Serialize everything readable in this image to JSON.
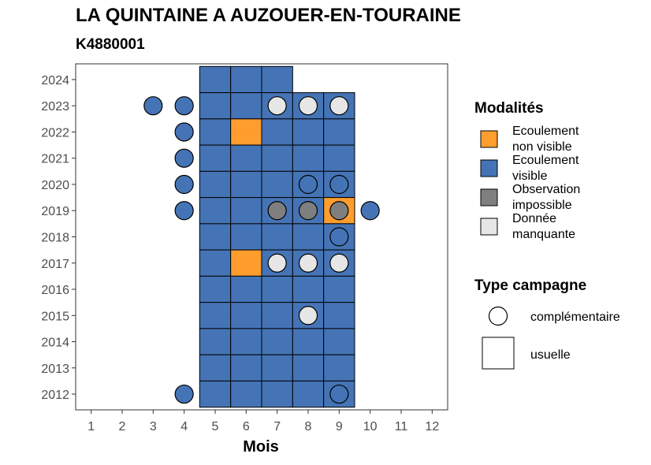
{
  "title": "LA QUINTAINE A AUZOUER-EN-TOURAINE",
  "subtitle": "K4880001",
  "chart_data": {
    "type": "heatmap",
    "xlabel": "Mois",
    "ylabel": "",
    "x_ticks": [
      1,
      2,
      3,
      4,
      5,
      6,
      7,
      8,
      9,
      10,
      11,
      12
    ],
    "y_ticks": [
      2012,
      2013,
      2014,
      2015,
      2016,
      2017,
      2018,
      2019,
      2020,
      2021,
      2022,
      2023,
      2024
    ],
    "xlim": [
      0.5,
      12.5
    ],
    "ylim": [
      2011.4,
      2024.6
    ],
    "colors": {
      "Ecoulement non visible": "#ff9d2e",
      "Ecoulement visible": "#4574b6",
      "Observation impossible": "#7f7f7f",
      "Donnée manquante": "#e6e6e6"
    },
    "usuelle": [
      {
        "year": 2024,
        "months": [
          5,
          6,
          7
        ],
        "status": "Ecoulement visible"
      },
      {
        "year": 2023,
        "months": [
          5,
          6,
          7,
          8,
          9
        ],
        "status": "Ecoulement visible"
      },
      {
        "year": 2022,
        "months": [
          5,
          7,
          8,
          9
        ],
        "status": "Ecoulement visible"
      },
      {
        "year": 2022,
        "months": [
          6
        ],
        "status": "Ecoulement non visible"
      },
      {
        "year": 2021,
        "months": [
          5,
          6,
          7,
          8,
          9
        ],
        "status": "Ecoulement visible"
      },
      {
        "year": 2020,
        "months": [
          5,
          6,
          7,
          8,
          9
        ],
        "status": "Ecoulement visible"
      },
      {
        "year": 2019,
        "months": [
          5,
          6,
          7,
          8
        ],
        "status": "Ecoulement visible"
      },
      {
        "year": 2019,
        "months": [
          9
        ],
        "status": "Ecoulement non visible"
      },
      {
        "year": 2018,
        "months": [
          5,
          6,
          7,
          8,
          9
        ],
        "status": "Ecoulement visible"
      },
      {
        "year": 2017,
        "months": [
          5,
          7,
          8,
          9
        ],
        "status": "Ecoulement visible"
      },
      {
        "year": 2017,
        "months": [
          6
        ],
        "status": "Ecoulement non visible"
      },
      {
        "year": 2016,
        "months": [
          5,
          6,
          7,
          8,
          9
        ],
        "status": "Ecoulement visible"
      },
      {
        "year": 2015,
        "months": [
          5,
          6,
          7,
          8,
          9
        ],
        "status": "Ecoulement visible"
      },
      {
        "year": 2014,
        "months": [
          5,
          6,
          7,
          8,
          9
        ],
        "status": "Ecoulement visible"
      },
      {
        "year": 2013,
        "months": [
          5,
          6,
          7,
          8,
          9
        ],
        "status": "Ecoulement visible"
      },
      {
        "year": 2012,
        "months": [
          5,
          6,
          7,
          8,
          9
        ],
        "status": "Ecoulement visible"
      }
    ],
    "complementaire": [
      {
        "year": 2023,
        "month": 3,
        "status": "Ecoulement visible"
      },
      {
        "year": 2023,
        "month": 4,
        "status": "Ecoulement visible"
      },
      {
        "year": 2023,
        "month": 7,
        "status": "Donnée manquante"
      },
      {
        "year": 2023,
        "month": 8,
        "status": "Donnée manquante"
      },
      {
        "year": 2023,
        "month": 9,
        "status": "Donnée manquante"
      },
      {
        "year": 2022,
        "month": 4,
        "status": "Ecoulement visible"
      },
      {
        "year": 2021,
        "month": 4,
        "status": "Ecoulement visible"
      },
      {
        "year": 2020,
        "month": 4,
        "status": "Ecoulement visible"
      },
      {
        "year": 2020,
        "month": 8,
        "status": "Ecoulement visible"
      },
      {
        "year": 2020,
        "month": 9,
        "status": "Ecoulement visible"
      },
      {
        "year": 2019,
        "month": 4,
        "status": "Ecoulement visible"
      },
      {
        "year": 2019,
        "month": 7,
        "status": "Observation impossible"
      },
      {
        "year": 2019,
        "month": 8,
        "status": "Observation impossible"
      },
      {
        "year": 2019,
        "month": 9,
        "status": "Observation impossible"
      },
      {
        "year": 2019,
        "month": 10,
        "status": "Ecoulement visible"
      },
      {
        "year": 2018,
        "month": 9,
        "status": "Ecoulement visible"
      },
      {
        "year": 2017,
        "month": 7,
        "status": "Donnée manquante"
      },
      {
        "year": 2017,
        "month": 8,
        "status": "Donnée manquante"
      },
      {
        "year": 2017,
        "month": 9,
        "status": "Donnée manquante"
      },
      {
        "year": 2015,
        "month": 8,
        "status": "Donnée manquante"
      },
      {
        "year": 2012,
        "month": 4,
        "status": "Ecoulement visible"
      },
      {
        "year": 2012,
        "month": 9,
        "status": "Ecoulement visible"
      }
    ],
    "legend": {
      "placement": "right",
      "modalites_title": "Modalités",
      "modalites": [
        {
          "lines": [
            "Ecoulement",
            "non visible"
          ],
          "color": "#ff9d2e"
        },
        {
          "lines": [
            "Ecoulement",
            "visible"
          ],
          "color": "#4574b6"
        },
        {
          "lines": [
            "Observation",
            "impossible"
          ],
          "color": "#7f7f7f"
        },
        {
          "lines": [
            "Donnée",
            "manquante"
          ],
          "color": "#e6e6e6"
        }
      ],
      "type_title": "Type campagne",
      "types": [
        {
          "label": "complémentaire",
          "shape": "circle"
        },
        {
          "label": "usuelle",
          "shape": "square"
        }
      ]
    }
  }
}
